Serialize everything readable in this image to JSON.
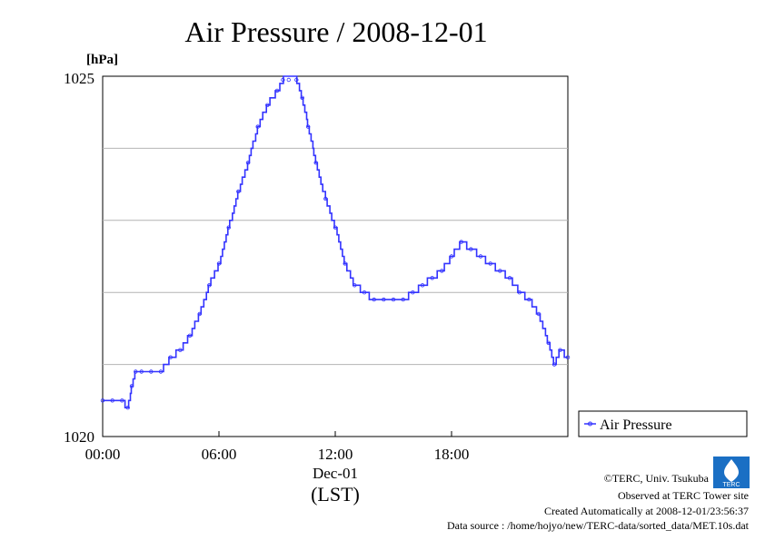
{
  "chart_data": {
    "type": "line",
    "title": "Air Pressure / 2008-12-01",
    "y_unit_label": "[hPa]",
    "ylim": [
      1020,
      1025
    ],
    "y_tick_labels": [
      "1025",
      "1020"
    ],
    "xlim_hours": [
      0,
      24
    ],
    "x_tick_labels": [
      "00:00",
      "06:00",
      "12:00",
      "18:00"
    ],
    "x_date_label": "Dec-01",
    "x_unit_label": "(LST)",
    "grid": true,
    "legend": {
      "placement": "right",
      "entry": "Air Pressure"
    },
    "series": [
      {
        "name": "Air Pressure",
        "color": "#3333ff",
        "x": [
          0,
          0.5,
          1.0,
          1.3,
          1.5,
          1.7,
          2.0,
          2.5,
          3.0,
          3.5,
          4.0,
          4.5,
          5.0,
          5.5,
          6.0,
          6.5,
          7.0,
          7.5,
          8.0,
          8.5,
          9.0,
          9.3,
          9.6,
          10.0,
          10.3,
          10.6,
          11.0,
          11.5,
          12.0,
          12.5,
          13.0,
          13.5,
          14.0,
          14.5,
          15.0,
          15.5,
          16.0,
          16.5,
          17.0,
          17.5,
          18.0,
          18.5,
          19.0,
          19.5,
          20.0,
          20.5,
          21.0,
          21.5,
          22.0,
          22.5,
          23.0,
          23.3,
          23.6,
          24.0
        ],
        "y": [
          1020.5,
          1020.5,
          1020.5,
          1020.4,
          1020.7,
          1020.9,
          1020.9,
          1020.9,
          1020.9,
          1021.1,
          1021.2,
          1021.4,
          1021.7,
          1022.1,
          1022.4,
          1022.9,
          1023.4,
          1023.8,
          1024.3,
          1024.6,
          1024.8,
          1024.95,
          1024.95,
          1024.95,
          1024.7,
          1024.3,
          1023.8,
          1023.3,
          1022.9,
          1022.4,
          1022.1,
          1022.0,
          1021.9,
          1021.9,
          1021.9,
          1021.9,
          1022.0,
          1022.1,
          1022.2,
          1022.3,
          1022.5,
          1022.7,
          1022.6,
          1022.5,
          1022.4,
          1022.3,
          1022.2,
          1022.0,
          1021.9,
          1021.7,
          1021.3,
          1021.0,
          1021.2,
          1021.1
        ]
      }
    ]
  },
  "credits": {
    "copyright": "©TERC, Univ. Tsukuba",
    "site": "Observed at TERC Tower site",
    "created": "Created Automatically at 2008-12-01/23:56:37",
    "source": "Data source : /home/hojyo/new/TERC-data/sorted_data/MET.10s.dat",
    "logo_text": "TERC"
  }
}
